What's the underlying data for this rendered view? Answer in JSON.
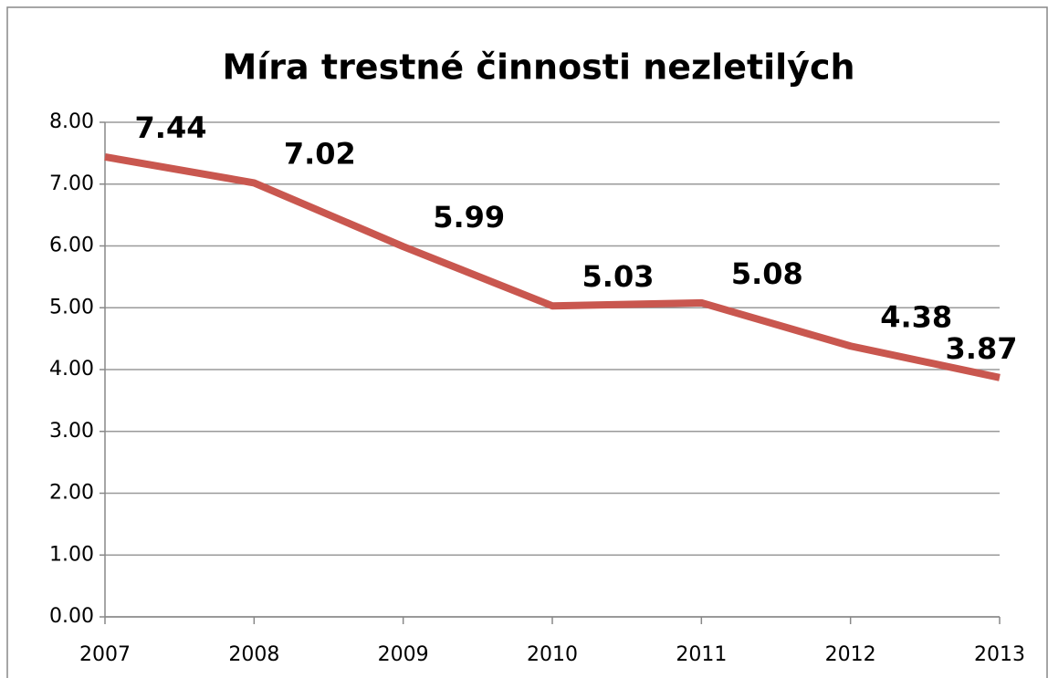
{
  "chart_data": {
    "type": "line",
    "title": "Míra trestné činnosti nezletilých",
    "categories": [
      "2007",
      "2008",
      "2009",
      "2010",
      "2011",
      "2012",
      "2013"
    ],
    "series": [
      {
        "name": "Míra trestné činnosti nezletilých",
        "color": "#c9574f",
        "values": [
          7.44,
          7.02,
          5.99,
          5.03,
          5.08,
          4.38,
          3.87
        ]
      }
    ],
    "ylim": [
      0,
      8
    ],
    "yticks": [
      {
        "value": 0,
        "label": "0.00"
      },
      {
        "value": 1,
        "label": "1.00"
      },
      {
        "value": 2,
        "label": "2.00"
      },
      {
        "value": 3,
        "label": "3.00"
      },
      {
        "value": 4,
        "label": "4.00"
      },
      {
        "value": 5,
        "label": "5.00"
      },
      {
        "value": 6,
        "label": "6.00"
      },
      {
        "value": 7,
        "label": "7.00"
      },
      {
        "value": 8,
        "label": "8.00"
      }
    ],
    "grid": true,
    "legend": false
  }
}
